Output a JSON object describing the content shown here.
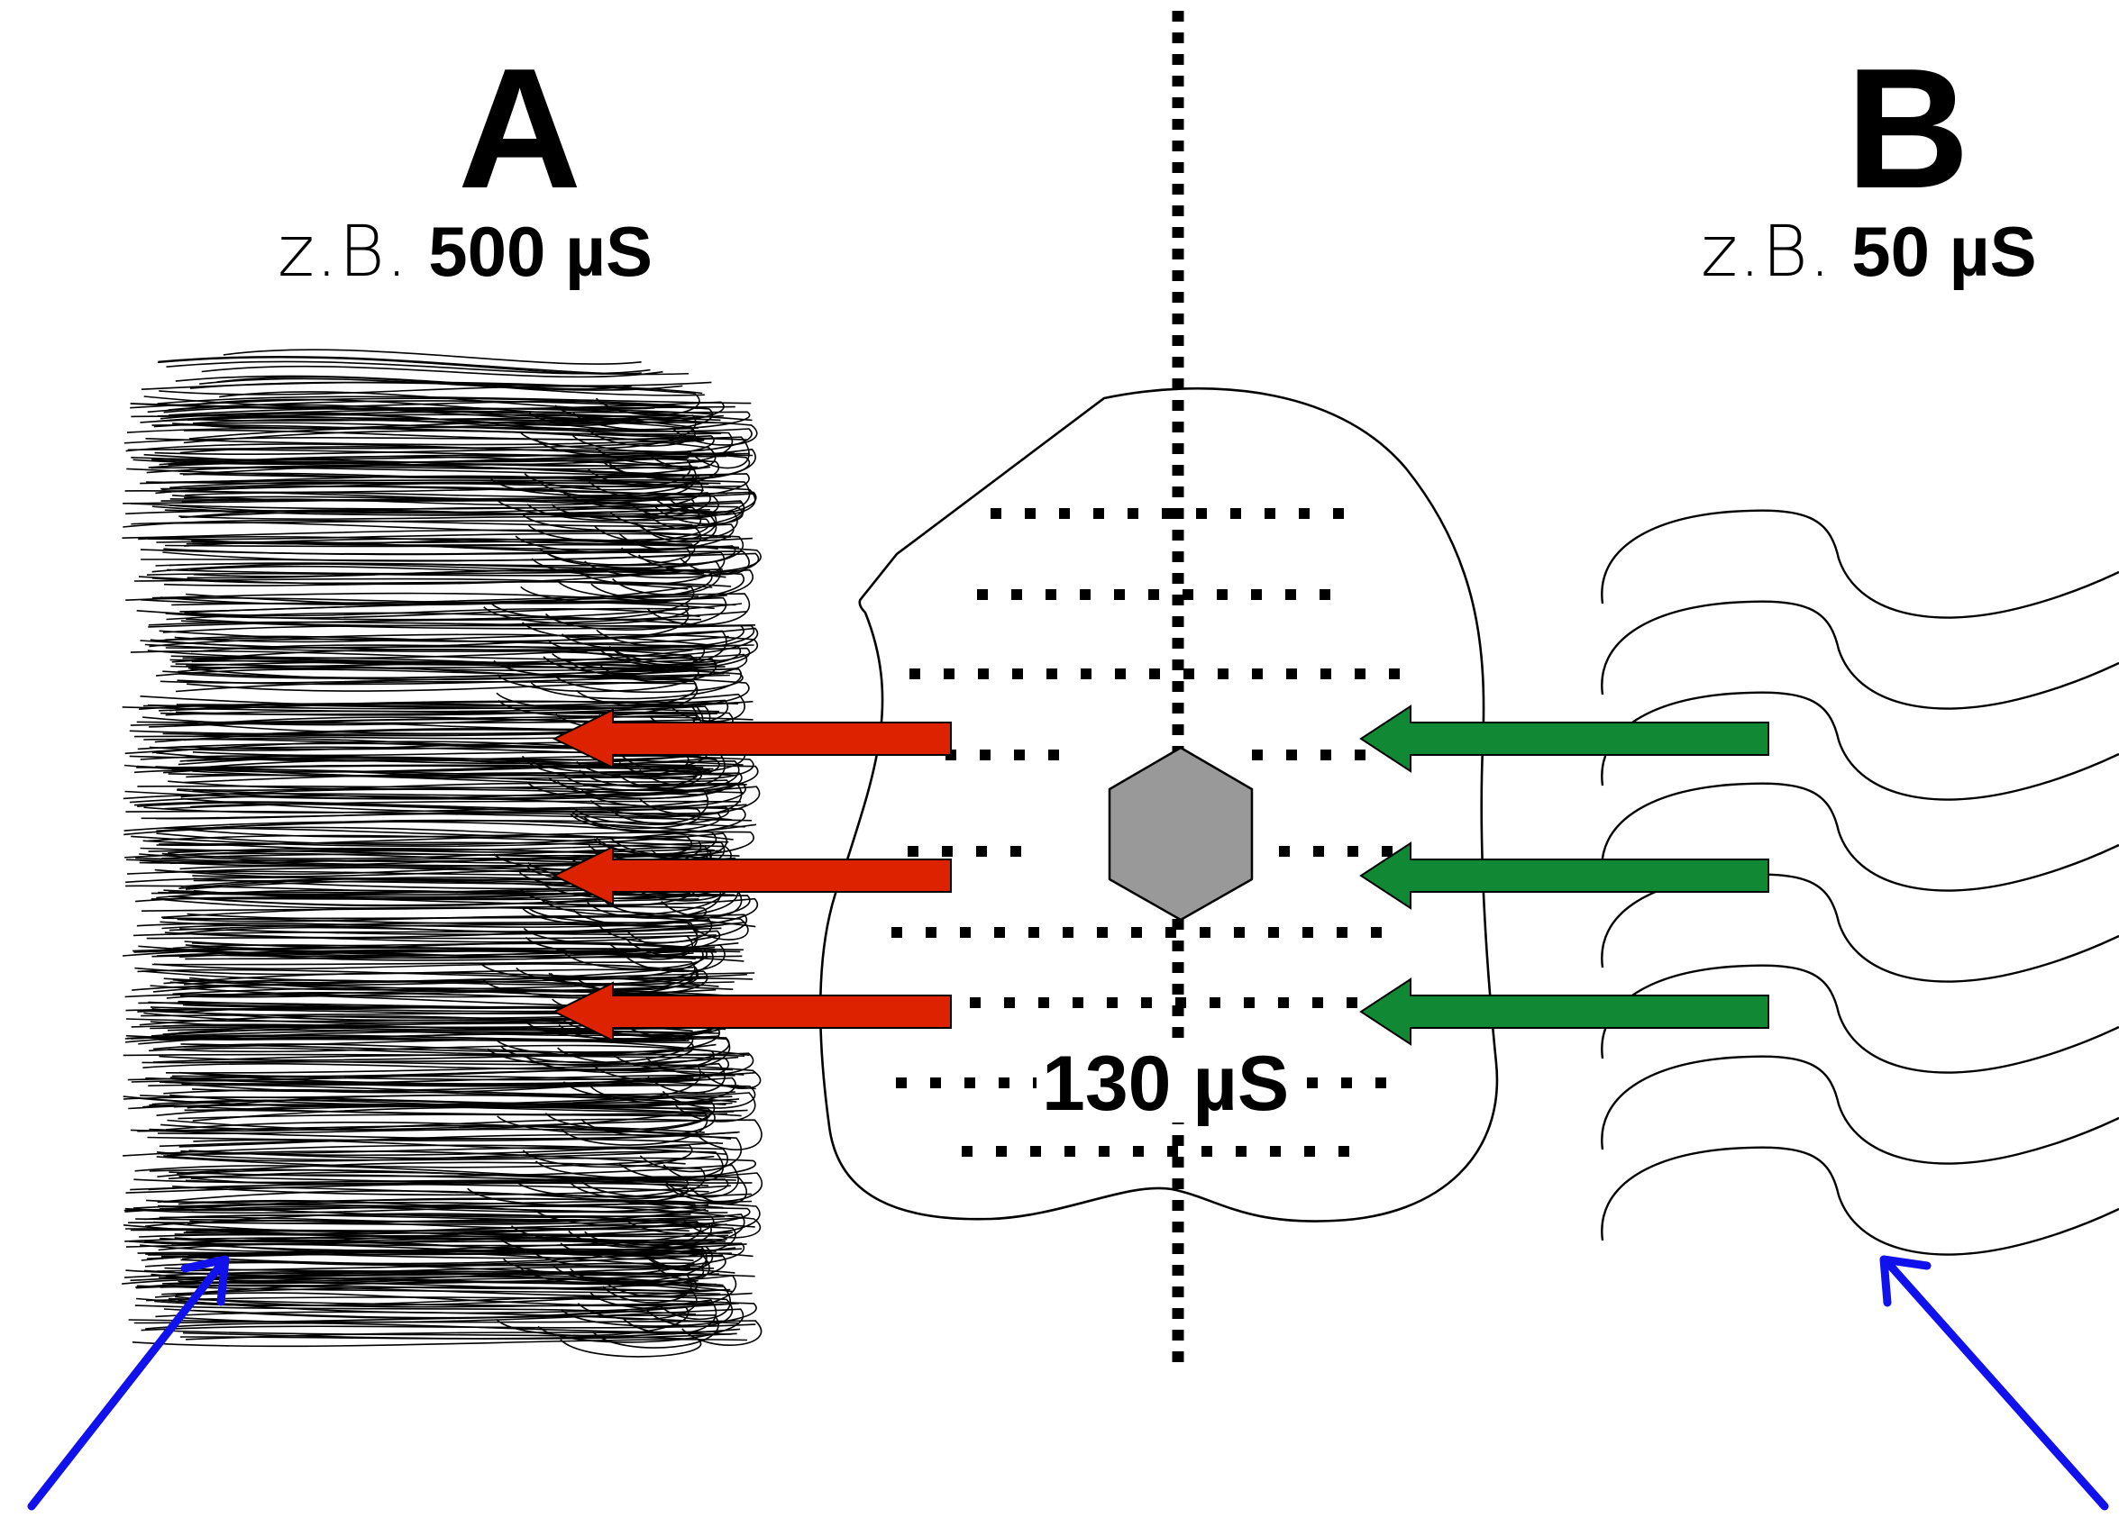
{
  "side_a": {
    "letter": "A",
    "example_prefix": "z.B.",
    "example_value": "500 µS"
  },
  "side_b": {
    "letter": "B",
    "example_prefix": "z.B.",
    "example_value": "50 µS"
  },
  "center": {
    "value": "130 µS"
  },
  "colors": {
    "arrow_out": "#dd2200",
    "arrow_in": "#118833",
    "pointer": "#1111ee",
    "hexagon": "#999999",
    "outline": "#000000"
  },
  "icons": {
    "hexagon": "gray-hexagon-shape",
    "arrow_out": "red-left-arrow",
    "arrow_in": "green-left-arrow",
    "pointer": "blue-diagonal-arrow"
  }
}
